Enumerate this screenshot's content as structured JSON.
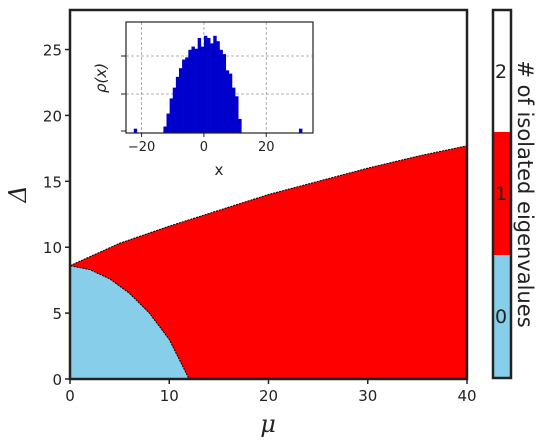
{
  "chart_data": [
    {
      "type": "area",
      "xlabel": "μ",
      "ylabel": "Δ",
      "xlim": [
        0,
        40
      ],
      "ylim": [
        0,
        28
      ],
      "xticks": [
        "0",
        "10",
        "20",
        "30",
        "40"
      ],
      "yticks": [
        "0",
        "5",
        "10",
        "15",
        "20",
        "25"
      ],
      "regions": [
        {
          "label": "0",
          "color": "#87ceeb",
          "boundary": {
            "mu": [
              0,
              2,
              4,
              6,
              8,
              10,
              12
            ],
            "delta": [
              8.6,
              8.3,
              7.6,
              6.5,
              5.0,
              3.0,
              0
            ]
          }
        },
        {
          "label": "1",
          "color": "#ff0000",
          "boundary": {
            "mu": [
              0,
              5,
              10,
              15,
              20,
              25,
              30,
              35,
              40
            ],
            "delta": [
              8.6,
              10.3,
              11.6,
              12.8,
              14.0,
              15.0,
              16.0,
              16.9,
              17.7
            ]
          }
        },
        {
          "label": "2",
          "color": "#ffffff"
        }
      ],
      "colorbar": {
        "label": "# of isolated eigenvalues",
        "ticks": [
          "0",
          "1",
          "2"
        ],
        "colors": [
          "#87ceeb",
          "#ff0000",
          "#ffffff"
        ]
      }
    },
    {
      "type": "bar",
      "xlabel": "x",
      "ylabel": "ρ(x)",
      "xlim": [
        -25,
        35
      ],
      "xticks": [
        "−20",
        "0",
        "20"
      ],
      "grid": true,
      "color": "#0000cd",
      "bins": {
        "x": [
          -22,
          -12.5,
          -11.5,
          -10.5,
          -9.5,
          -8.5,
          -7.5,
          -6.5,
          -5.5,
          -4.5,
          -3.5,
          -2.5,
          -1.5,
          -0.5,
          0.5,
          1.5,
          2.5,
          3.5,
          4.5,
          5.5,
          6.5,
          7.5,
          8.5,
          9.5,
          10.5,
          11.5,
          31
        ],
        "y": [
          0.04,
          0.06,
          0.18,
          0.32,
          0.42,
          0.52,
          0.6,
          0.68,
          0.7,
          0.77,
          0.8,
          0.78,
          0.88,
          0.8,
          0.9,
          0.88,
          0.83,
          0.9,
          0.85,
          0.77,
          0.73,
          0.58,
          0.55,
          0.42,
          0.34,
          0.13,
          0.04
        ]
      }
    }
  ]
}
